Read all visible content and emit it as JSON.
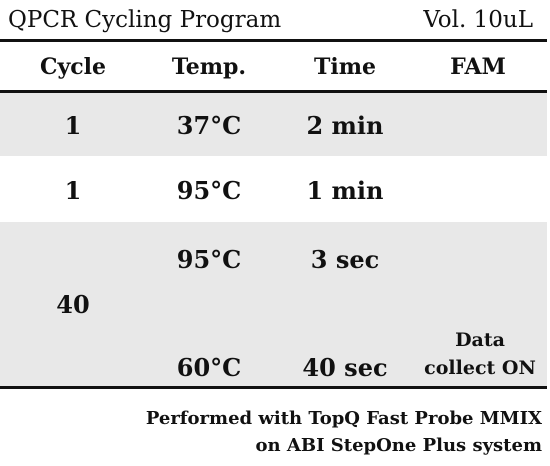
{
  "title": "QPCR Cycling Program",
  "volume": "Vol. 10uL",
  "headers": {
    "cycle": "Cycle",
    "temp": "Temp.",
    "time": "Time",
    "fam": "FAM"
  },
  "rows": [
    {
      "cycle": "1",
      "temp": "37°C",
      "time": "2 min"
    },
    {
      "cycle": "1",
      "temp": "95°C",
      "time": "1 min"
    },
    {
      "cycle": "40",
      "steps": [
        {
          "temp": "95°C",
          "time": "3 sec"
        },
        {
          "temp": "60°C",
          "time": "40 sec",
          "fam_line1": "Data",
          "fam_line2": "collect ON"
        }
      ]
    }
  ],
  "footer": {
    "line1": "Performed with TopQ Fast Probe MMIX",
    "line2": "on ABI StepOne Plus system"
  },
  "colors": {
    "band": "#e8e8e8",
    "text": "#111111"
  }
}
